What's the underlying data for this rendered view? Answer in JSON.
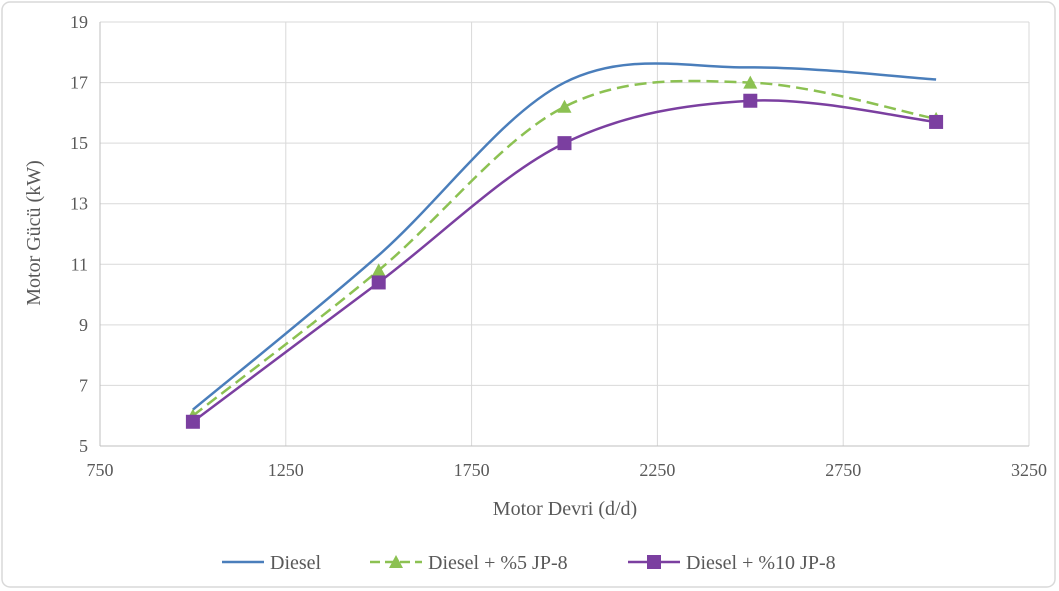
{
  "chart_data": {
    "type": "line",
    "xlabel": "Motor Devri (d/d)",
    "ylabel": "Motor Gücü (kW)",
    "xlim": [
      750,
      3250
    ],
    "ylim": [
      5,
      19
    ],
    "x_ticks": [
      "750",
      "1250",
      "1750",
      "2250",
      "2750",
      "3250"
    ],
    "y_ticks": [
      "5",
      "7",
      "9",
      "11",
      "13",
      "15",
      "17",
      "19"
    ],
    "grid": "both",
    "legend_position": "bottom",
    "x": [
      1000,
      1500,
      2000,
      2500,
      3000
    ],
    "series": [
      {
        "name": "Diesel",
        "values": [
          6.2,
          11.3,
          17.0,
          17.5,
          17.1
        ],
        "color": "#4a7ebb",
        "marker": "none",
        "dash": "solid"
      },
      {
        "name": "Diesel + %5 JP-8",
        "values": [
          6.0,
          10.8,
          16.2,
          17.0,
          15.8
        ],
        "color": "#8cc152",
        "marker": "triangle",
        "dash": "dashed"
      },
      {
        "name": "Diesel + %10 JP-8",
        "values": [
          5.8,
          10.4,
          15.0,
          16.4,
          15.7
        ],
        "color": "#7b3fa0",
        "marker": "square",
        "dash": "solid"
      }
    ]
  }
}
